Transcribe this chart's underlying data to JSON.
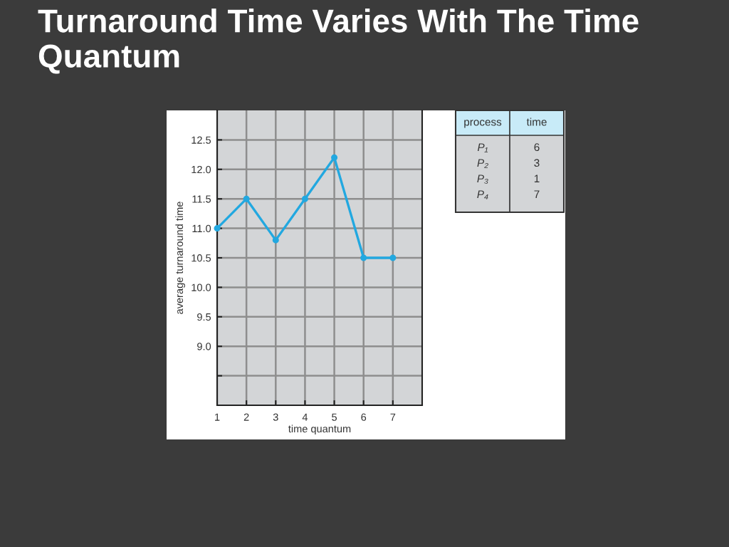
{
  "chart_data": [
    {
      "type": "line",
      "title": "Turnaround Time Varies With The Time Quantum",
      "xlabel": "time quantum",
      "ylabel": "average turnaround time",
      "x": [
        1,
        2,
        3,
        4,
        5,
        6,
        7
      ],
      "values": [
        11.0,
        11.5,
        10.8,
        11.5,
        12.2,
        10.5,
        10.5
      ],
      "color": "#22a8e0",
      "marker": "circle",
      "line_style": "solid",
      "xlim": [
        1,
        8
      ],
      "xticks": [
        1,
        2,
        3,
        4,
        5,
        6,
        7
      ],
      "ylim": [
        8,
        13
      ],
      "yticks": [
        {
          "value": 8.5,
          "label": null
        },
        {
          "value": 9,
          "label": "9.0"
        },
        {
          "value": 9.5,
          "label": "9.5"
        },
        {
          "value": 10,
          "label": "10.0"
        },
        {
          "value": 10.5,
          "label": "10.5"
        },
        {
          "value": 11,
          "label": "11.0"
        },
        {
          "value": 11.5,
          "label": "11.5"
        },
        {
          "value": 12,
          "label": "12.0"
        },
        {
          "value": 12.5,
          "label": "12.5"
        }
      ],
      "grid": true
    },
    {
      "type": "other",
      "xlabel": "process",
      "ylabel": "time",
      "categories": [
        "P₁",
        "P₂",
        "P₃",
        "P₄"
      ],
      "values": [
        6,
        3,
        1,
        7
      ],
      "data_labels": true
    }
  ]
}
